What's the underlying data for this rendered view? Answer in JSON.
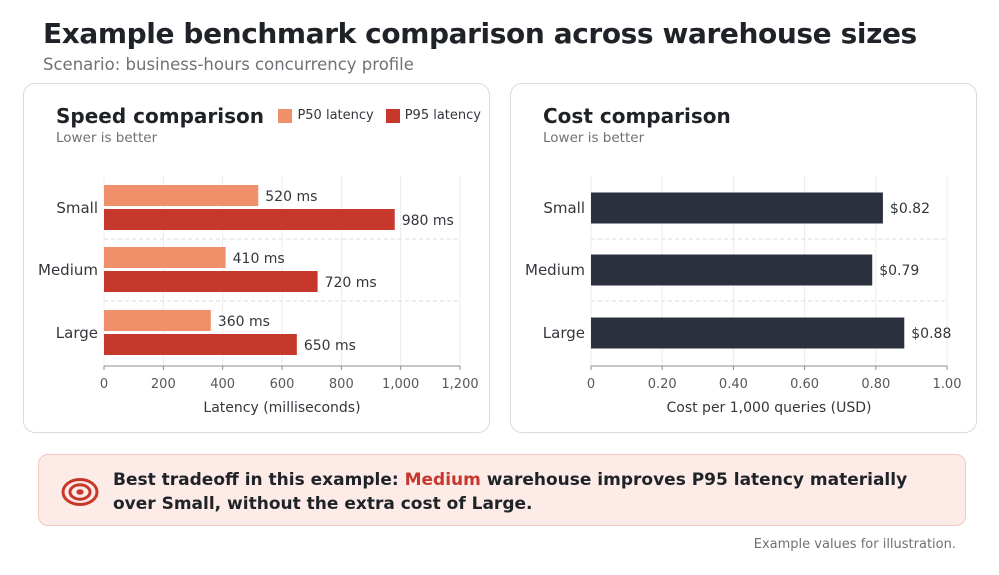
{
  "header": {
    "title": "Example benchmark comparison across warehouse sizes",
    "subtitle": "Scenario: business-hours concurrency profile"
  },
  "speed": {
    "title": "Speed comparison",
    "subtitle": "Lower is better"
  },
  "cost": {
    "title": "Cost comparison",
    "subtitle": "Lower is better"
  },
  "callout": {
    "text_before": "Best tradeoff in this example: ",
    "highlight": "Medium",
    "text_after": " warehouse improves P95 latency materially over Small, without the extra cost of Large."
  },
  "footnote": "Example values for illustration.",
  "colors": {
    "p50": "#f0906a",
    "p95": "#c7382c",
    "cost": "#2b313c",
    "highlight": "#c7382c"
  },
  "chart_data": [
    {
      "type": "bar",
      "orientation": "horizontal",
      "title": "Speed comparison",
      "subtitle": "Lower is better",
      "categories": [
        "Small",
        "Medium",
        "Large"
      ],
      "series": [
        {
          "name": "P50 latency",
          "values": [
            520,
            410,
            360
          ],
          "labels": [
            "520 ms",
            "410 ms",
            "360 ms"
          ]
        },
        {
          "name": "P95 latency",
          "values": [
            980,
            720,
            650
          ],
          "labels": [
            "980 ms",
            "720 ms",
            "650 ms"
          ]
        }
      ],
      "xlabel": "Latency (milliseconds)",
      "xlim": [
        0,
        1200
      ],
      "xticks": [
        0,
        200,
        400,
        600,
        800,
        1000,
        1200
      ],
      "xtick_labels": [
        "0",
        "200",
        "400",
        "600",
        "800",
        "1,000",
        "1,200"
      ],
      "grid": true,
      "legend": "top-right"
    },
    {
      "type": "bar",
      "orientation": "horizontal",
      "title": "Cost comparison",
      "subtitle": "Lower is better",
      "categories": [
        "Small",
        "Medium",
        "Large"
      ],
      "values": [
        0.82,
        0.79,
        0.88
      ],
      "labels": [
        "$0.82",
        "$0.79",
        "$0.88"
      ],
      "xlabel": "Cost per 1,000 queries (USD)",
      "xlim": [
        0,
        1.0
      ],
      "xticks": [
        0,
        0.2,
        0.4,
        0.6,
        0.8,
        1.0
      ],
      "xtick_labels": [
        "0",
        "0.20",
        "0.40",
        "0.60",
        "0.80",
        "1.00"
      ],
      "grid": true
    }
  ]
}
